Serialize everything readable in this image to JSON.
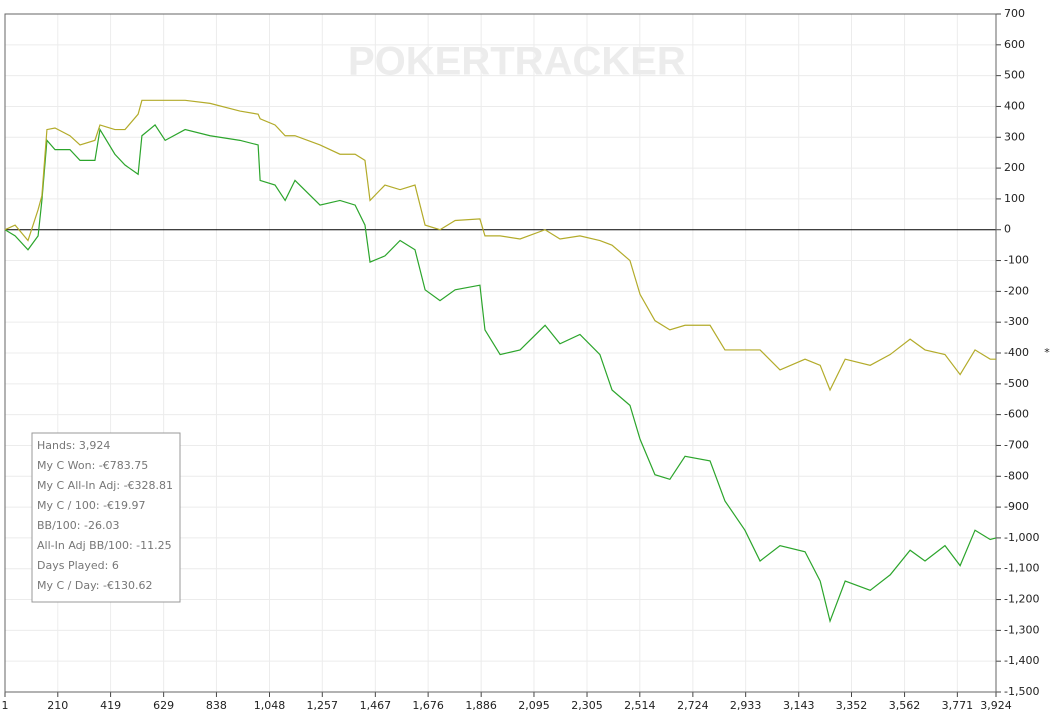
{
  "chart_data": {
    "type": "line",
    "watermark": "POKERTRACKER",
    "y_label": "*",
    "x": [
      1,
      41,
      92,
      132,
      147,
      167,
      199,
      258,
      298,
      357,
      377,
      436,
      476,
      528,
      543,
      595,
      635,
      714,
      813,
      931,
      1003,
      1011,
      1070,
      1110,
      1149,
      1248,
      1327,
      1387,
      1426,
      1446,
      1505,
      1565,
      1624,
      1664,
      1723,
      1783,
      1881,
      1901,
      1961,
      2040,
      2139,
      2198,
      2277,
      2356,
      2404,
      2475,
      2515,
      2574,
      2633,
      2693,
      2792,
      2851,
      2930,
      2990,
      3069,
      3168,
      3228,
      3267,
      3327,
      3426,
      3505,
      3584,
      3643,
      3722,
      3782,
      3841,
      3901,
      3924
    ],
    "series": [
      {
        "color": "#2ca52c",
        "values": [
          0,
          -20,
          -65,
          -20,
          95,
          290,
          260,
          260,
          225,
          225,
          325,
          245,
          210,
          180,
          305,
          340,
          290,
          325,
          305,
          290,
          275,
          160,
          145,
          95,
          160,
          80,
          95,
          80,
          15,
          -105,
          -85,
          -35,
          -65,
          -195,
          -230,
          -195,
          -180,
          -325,
          -405,
          -390,
          -310,
          -370,
          -340,
          -405,
          -520,
          -570,
          -680,
          -795,
          -810,
          -735,
          -750,
          -880,
          -975,
          -1075,
          -1025,
          -1045,
          -1140,
          -1270,
          -1140,
          -1170,
          -1120,
          -1040,
          -1075,
          -1025,
          -1090,
          -975,
          -1005,
          -1000
        ]
      },
      {
        "color": "#b3ab2a",
        "values": [
          0,
          15,
          -35,
          65,
          110,
          325,
          330,
          305,
          275,
          290,
          340,
          325,
          325,
          375,
          420,
          420,
          420,
          420,
          410,
          385,
          375,
          360,
          340,
          305,
          305,
          275,
          245,
          245,
          225,
          95,
          145,
          130,
          145,
          15,
          0,
          30,
          35,
          -20,
          -20,
          -30,
          0,
          -30,
          -20,
          -35,
          -50,
          -100,
          -210,
          -295,
          -325,
          -310,
          -310,
          -390,
          -390,
          -390,
          -455,
          -420,
          -440,
          -520,
          -420,
          -440,
          -405,
          -355,
          -390,
          -405,
          -470,
          -390,
          -420,
          -420
        ]
      }
    ],
    "xlim": [
      1,
      3924
    ],
    "xticks": [
      1,
      210,
      419,
      629,
      838,
      {
        "value": 1048,
        "label": "1,048"
      },
      {
        "value": 1257,
        "label": "1,257"
      },
      {
        "value": 1467,
        "label": "1,467"
      },
      {
        "value": 1676,
        "label": "1,676"
      },
      {
        "value": 1886,
        "label": "1,886"
      },
      {
        "value": 2095,
        "label": "2,095"
      },
      {
        "value": 2305,
        "label": "2,305"
      },
      {
        "value": 2514,
        "label": "2,514"
      },
      {
        "value": 2724,
        "label": "2,724"
      },
      {
        "value": 2933,
        "label": "2,933"
      },
      {
        "value": 3143,
        "label": "3,143"
      },
      {
        "value": 3352,
        "label": "3,352"
      },
      {
        "value": 3562,
        "label": "3,562"
      },
      {
        "value": 3771,
        "label": "3,771"
      },
      {
        "value": 3924,
        "label": "3,924"
      }
    ],
    "ylim": [
      -1500,
      700
    ],
    "yticks": [
      {
        "value": -1500,
        "label": "-1,500"
      },
      {
        "value": -1400,
        "label": "-1,400"
      },
      {
        "value": -1300,
        "label": "-1,300"
      },
      {
        "value": -1200,
        "label": "-1,200"
      },
      {
        "value": -1100,
        "label": "-1,100"
      },
      {
        "value": -1000,
        "label": "-1,000"
      },
      -900,
      -800,
      -700,
      -600,
      -500,
      -400,
      -300,
      -200,
      -100,
      0,
      100,
      200,
      300,
      400,
      500,
      600,
      700
    ],
    "grid": true,
    "info_box": [
      "Hands: 3,924",
      "My C Won: -€783.75",
      "My C All-In Adj: -€328.81",
      "My C / 100: -€19.97",
      "BB/100: -26.03",
      "All-In Adj BB/100: -11.25",
      "Days Played: 6",
      "My C / Day: -€130.62"
    ]
  }
}
